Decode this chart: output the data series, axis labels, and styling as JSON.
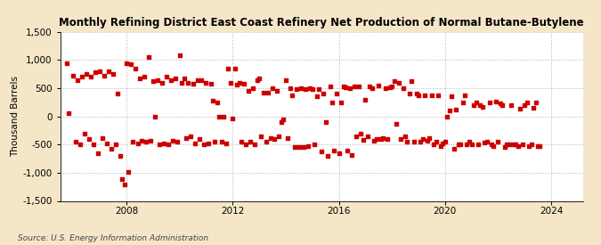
{
  "title": "Monthly Refining District East Coast Refinery Net Production of Normal Butane-Butylene",
  "ylabel": "Thousand Barrels",
  "source": "Source: U.S. Energy Information Administration",
  "background_color": "#f5e6c8",
  "plot_background_color": "#ffffff",
  "marker_color": "#cc0000",
  "xlim_left": 2005.5,
  "xlim_right": 2025.2,
  "ylim_bottom": -1500,
  "ylim_top": 1500,
  "yticks": [
    -1500,
    -1000,
    -500,
    0,
    500,
    1000,
    1500
  ],
  "xticks": [
    2008,
    2012,
    2016,
    2020,
    2024
  ],
  "data": [
    [
      2005.75,
      950
    ],
    [
      2005.83,
      50
    ],
    [
      2006.0,
      720
    ],
    [
      2006.08,
      -450
    ],
    [
      2006.17,
      650
    ],
    [
      2006.25,
      -500
    ],
    [
      2006.33,
      700
    ],
    [
      2006.42,
      -300
    ],
    [
      2006.5,
      750
    ],
    [
      2006.58,
      -400
    ],
    [
      2006.67,
      700
    ],
    [
      2006.75,
      -500
    ],
    [
      2006.83,
      780
    ],
    [
      2006.92,
      -650
    ],
    [
      2007.0,
      800
    ],
    [
      2007.08,
      -380
    ],
    [
      2007.17,
      720
    ],
    [
      2007.25,
      -480
    ],
    [
      2007.33,
      800
    ],
    [
      2007.42,
      -580
    ],
    [
      2007.5,
      750
    ],
    [
      2007.58,
      -500
    ],
    [
      2007.67,
      400
    ],
    [
      2007.75,
      -700
    ],
    [
      2007.83,
      -1120
    ],
    [
      2007.92,
      -1200
    ],
    [
      2008.0,
      950
    ],
    [
      2008.08,
      -980
    ],
    [
      2008.17,
      920
    ],
    [
      2008.25,
      -450
    ],
    [
      2008.33,
      850
    ],
    [
      2008.42,
      -480
    ],
    [
      2008.5,
      680
    ],
    [
      2008.58,
      -430
    ],
    [
      2008.67,
      700
    ],
    [
      2008.75,
      -450
    ],
    [
      2008.83,
      1050
    ],
    [
      2008.92,
      -430
    ],
    [
      2009.0,
      620
    ],
    [
      2009.08,
      0
    ],
    [
      2009.17,
      650
    ],
    [
      2009.25,
      -500
    ],
    [
      2009.33,
      600
    ],
    [
      2009.42,
      -480
    ],
    [
      2009.5,
      700
    ],
    [
      2009.58,
      -500
    ],
    [
      2009.67,
      650
    ],
    [
      2009.75,
      -430
    ],
    [
      2009.83,
      680
    ],
    [
      2009.92,
      -450
    ],
    [
      2010.0,
      1080
    ],
    [
      2010.08,
      600
    ],
    [
      2010.17,
      680
    ],
    [
      2010.25,
      -380
    ],
    [
      2010.33,
      600
    ],
    [
      2010.42,
      -350
    ],
    [
      2010.5,
      580
    ],
    [
      2010.58,
      -480
    ],
    [
      2010.67,
      650
    ],
    [
      2010.75,
      -400
    ],
    [
      2010.83,
      650
    ],
    [
      2010.92,
      -500
    ],
    [
      2011.0,
      600
    ],
    [
      2011.08,
      -480
    ],
    [
      2011.17,
      580
    ],
    [
      2011.25,
      280
    ],
    [
      2011.33,
      -450
    ],
    [
      2011.42,
      250
    ],
    [
      2011.5,
      0
    ],
    [
      2011.58,
      -450
    ],
    [
      2011.67,
      0
    ],
    [
      2011.75,
      -480
    ],
    [
      2011.83,
      850
    ],
    [
      2011.92,
      600
    ],
    [
      2012.0,
      -30
    ],
    [
      2012.08,
      850
    ],
    [
      2012.17,
      570
    ],
    [
      2012.25,
      600
    ],
    [
      2012.33,
      -450
    ],
    [
      2012.42,
      580
    ],
    [
      2012.5,
      -500
    ],
    [
      2012.58,
      450
    ],
    [
      2012.67,
      -450
    ],
    [
      2012.75,
      500
    ],
    [
      2012.83,
      -500
    ],
    [
      2012.92,
      650
    ],
    [
      2013.0,
      670
    ],
    [
      2013.08,
      -350
    ],
    [
      2013.17,
      420
    ],
    [
      2013.25,
      -450
    ],
    [
      2013.33,
      420
    ],
    [
      2013.42,
      -380
    ],
    [
      2013.5,
      500
    ],
    [
      2013.58,
      -400
    ],
    [
      2013.67,
      450
    ],
    [
      2013.75,
      -350
    ],
    [
      2013.83,
      -100
    ],
    [
      2013.92,
      -50
    ],
    [
      2014.0,
      650
    ],
    [
      2014.08,
      -380
    ],
    [
      2014.17,
      500
    ],
    [
      2014.25,
      380
    ],
    [
      2014.33,
      -550
    ],
    [
      2014.42,
      480
    ],
    [
      2014.5,
      -550
    ],
    [
      2014.58,
      500
    ],
    [
      2014.67,
      -550
    ],
    [
      2014.75,
      480
    ],
    [
      2014.83,
      -520
    ],
    [
      2014.92,
      500
    ],
    [
      2015.0,
      480
    ],
    [
      2015.08,
      -500
    ],
    [
      2015.17,
      350
    ],
    [
      2015.25,
      480
    ],
    [
      2015.33,
      -620
    ],
    [
      2015.42,
      400
    ],
    [
      2015.5,
      -100
    ],
    [
      2015.58,
      -700
    ],
    [
      2015.67,
      530
    ],
    [
      2015.75,
      250
    ],
    [
      2015.83,
      -600
    ],
    [
      2015.92,
      400
    ],
    [
      2016.0,
      -650
    ],
    [
      2016.08,
      250
    ],
    [
      2016.17,
      530
    ],
    [
      2016.25,
      520
    ],
    [
      2016.33,
      -600
    ],
    [
      2016.42,
      500
    ],
    [
      2016.5,
      -680
    ],
    [
      2016.58,
      530
    ],
    [
      2016.67,
      -350
    ],
    [
      2016.75,
      530
    ],
    [
      2016.83,
      -300
    ],
    [
      2016.92,
      -420
    ],
    [
      2017.0,
      300
    ],
    [
      2017.08,
      -350
    ],
    [
      2017.17,
      530
    ],
    [
      2017.25,
      500
    ],
    [
      2017.33,
      -430
    ],
    [
      2017.42,
      -400
    ],
    [
      2017.5,
      550
    ],
    [
      2017.58,
      -400
    ],
    [
      2017.67,
      -380
    ],
    [
      2017.75,
      500
    ],
    [
      2017.83,
      -400
    ],
    [
      2017.92,
      520
    ],
    [
      2018.0,
      530
    ],
    [
      2018.08,
      620
    ],
    [
      2018.17,
      -130
    ],
    [
      2018.25,
      600
    ],
    [
      2018.33,
      -400
    ],
    [
      2018.42,
      500
    ],
    [
      2018.5,
      -350
    ],
    [
      2018.58,
      -450
    ],
    [
      2018.67,
      400
    ],
    [
      2018.75,
      620
    ],
    [
      2018.83,
      -450
    ],
    [
      2018.92,
      400
    ],
    [
      2019.0,
      380
    ],
    [
      2019.08,
      -450
    ],
    [
      2019.17,
      -400
    ],
    [
      2019.25,
      380
    ],
    [
      2019.33,
      -430
    ],
    [
      2019.42,
      -380
    ],
    [
      2019.5,
      380
    ],
    [
      2019.58,
      -500
    ],
    [
      2019.67,
      -450
    ],
    [
      2019.75,
      380
    ],
    [
      2019.83,
      -520
    ],
    [
      2019.92,
      -480
    ],
    [
      2020.0,
      -450
    ],
    [
      2020.08,
      0
    ],
    [
      2020.17,
      100
    ],
    [
      2020.25,
      350
    ],
    [
      2020.33,
      -580
    ],
    [
      2020.42,
      120
    ],
    [
      2020.5,
      -500
    ],
    [
      2020.58,
      -500
    ],
    [
      2020.67,
      250
    ],
    [
      2020.75,
      380
    ],
    [
      2020.83,
      -500
    ],
    [
      2020.92,
      -450
    ],
    [
      2021.0,
      -500
    ],
    [
      2021.08,
      200
    ],
    [
      2021.17,
      250
    ],
    [
      2021.25,
      -500
    ],
    [
      2021.33,
      200
    ],
    [
      2021.42,
      170
    ],
    [
      2021.5,
      -470
    ],
    [
      2021.58,
      -450
    ],
    [
      2021.67,
      250
    ],
    [
      2021.75,
      -500
    ],
    [
      2021.83,
      -520
    ],
    [
      2021.92,
      270
    ],
    [
      2022.0,
      -450
    ],
    [
      2022.08,
      230
    ],
    [
      2022.17,
      200
    ],
    [
      2022.25,
      -540
    ],
    [
      2022.33,
      -500
    ],
    [
      2022.42,
      -500
    ],
    [
      2022.5,
      200
    ],
    [
      2022.58,
      -500
    ],
    [
      2022.67,
      -500
    ],
    [
      2022.75,
      -530
    ],
    [
      2022.83,
      130
    ],
    [
      2022.92,
      -500
    ],
    [
      2023.0,
      200
    ],
    [
      2023.08,
      250
    ],
    [
      2023.17,
      -530
    ],
    [
      2023.25,
      -500
    ],
    [
      2023.33,
      150
    ],
    [
      2023.42,
      250
    ],
    [
      2023.5,
      -520
    ],
    [
      2023.58,
      -520
    ]
  ]
}
